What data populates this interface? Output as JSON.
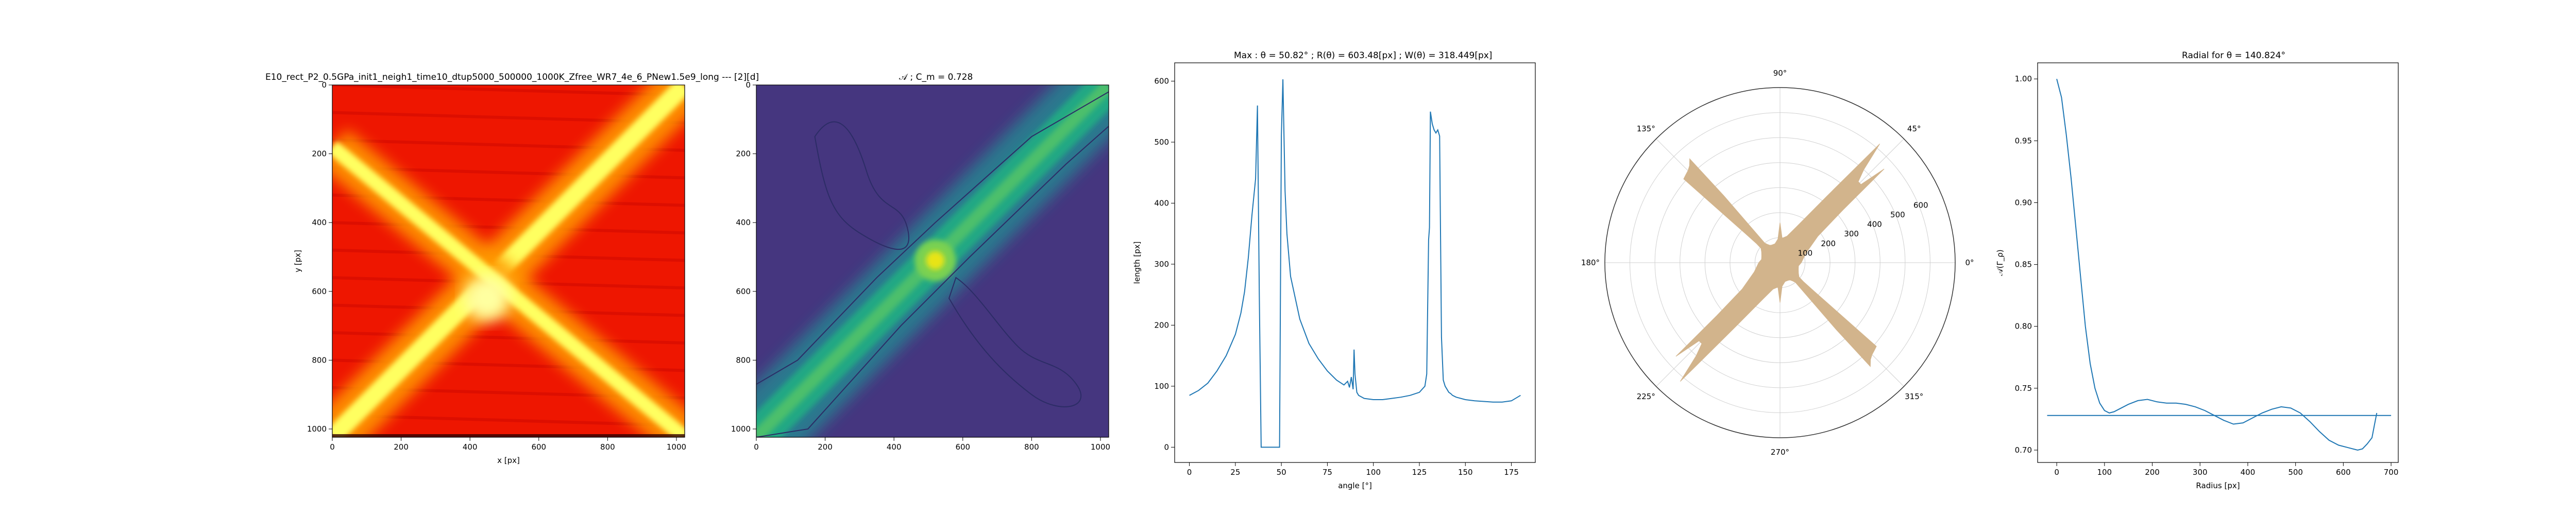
{
  "chart_data": [
    {
      "type": "heatmap",
      "title": "E10_rect_P2_0.5GPa_init1_neigh1_time10_dtup5000_500000_1000K_Zfree_WR7_4e_6_PNew1.5e9_long --- [2][d]",
      "xlabel": "x [px]",
      "ylabel": "y [px]",
      "xlim": [
        0,
        1024
      ],
      "ylim": [
        1024,
        0
      ],
      "xticks": [
        0,
        200,
        400,
        600,
        800,
        1000
      ],
      "yticks": [
        0,
        200,
        400,
        600,
        800,
        1000
      ],
      "colormap": "hot",
      "colors": {
        "low": "#8b0000",
        "mid": "#ff1a00",
        "high": "#ffff60"
      },
      "features": [
        {
          "from": [
            0,
            1024
          ],
          "to": [
            1024,
            0
          ],
          "intensity": 1.0
        },
        {
          "from": [
            0,
            180
          ],
          "to": [
            1024,
            1024
          ],
          "intensity": 0.8
        }
      ]
    },
    {
      "type": "heatmap",
      "title": "$\\mathcal{A}$ ; $C_m = 0.728$",
      "title_display": "𝒜 ; C_m = 0.728",
      "xlabel": "",
      "ylabel": "",
      "xlim": [
        0,
        1024
      ],
      "ylim": [
        1024,
        0
      ],
      "xticks": [
        0,
        200,
        400,
        600,
        800,
        1000
      ],
      "yticks": [
        0,
        200,
        400,
        600,
        800,
        1000
      ],
      "colormap": "viridis",
      "colors": {
        "low": "#433b83",
        "mid": "#21908d",
        "high": "#e8e419"
      },
      "features": [
        {
          "from": [
            0,
            1024
          ],
          "to": [
            1024,
            0
          ],
          "intensity": 1.0
        },
        {
          "peak": [
            520,
            510
          ]
        }
      ],
      "contour_level": 0.728
    },
    {
      "type": "line",
      "title": "Max : θ = 50.82° ; R(θ) = 603.48[px] ; W(θ) = 318.449[px]",
      "xlabel": "angle [°]",
      "ylabel": "length [px]",
      "xlim": [
        -8,
        188
      ],
      "ylim": [
        -25,
        630
      ],
      "xticks": [
        0,
        25,
        50,
        75,
        100,
        125,
        150,
        175
      ],
      "yticks": [
        0,
        100,
        200,
        300,
        400,
        500,
        600
      ],
      "line_color": "#1f77b4",
      "x": [
        0,
        5,
        10,
        15,
        20,
        25,
        28,
        30,
        32,
        34,
        36,
        37,
        38,
        39,
        40,
        44,
        48,
        49,
        50,
        50.82,
        52,
        53,
        55,
        60,
        65,
        70,
        75,
        80,
        84,
        86,
        87,
        88,
        89,
        89.5,
        90,
        91,
        92,
        95,
        100,
        105,
        110,
        115,
        120,
        125,
        128,
        129,
        130,
        130.5,
        131,
        132,
        133,
        134,
        135,
        136,
        137,
        138,
        139,
        140,
        141,
        142,
        143,
        145,
        150,
        155,
        160,
        165,
        170,
        175,
        180
      ],
      "y": [
        85,
        93,
        105,
        125,
        150,
        185,
        220,
        255,
        310,
        380,
        440,
        560,
        250,
        0,
        0,
        0,
        0,
        0,
        510,
        603,
        420,
        350,
        280,
        210,
        170,
        145,
        125,
        110,
        102,
        108,
        98,
        115,
        95,
        160,
        120,
        90,
        85,
        80,
        78,
        78,
        80,
        82,
        85,
        90,
        100,
        120,
        340,
        360,
        550,
        530,
        520,
        515,
        520,
        510,
        180,
        110,
        100,
        95,
        90,
        88,
        85,
        82,
        78,
        76,
        75,
        74,
        74,
        76,
        85
      ]
    },
    {
      "type": "area",
      "subtype": "polar",
      "title": "",
      "theta_ticks": [
        "0°",
        "45°",
        "90°",
        "135°",
        "180°",
        "225°",
        "270°",
        "315°"
      ],
      "r_ticks": [
        100,
        200,
        300,
        400,
        500,
        600
      ],
      "rmax": 700,
      "fill_color": "#d2b48c",
      "theta_deg": [
        0,
        20,
        35,
        40,
        42,
        44,
        46,
        48,
        50,
        55,
        65,
        75,
        85,
        90,
        95,
        105,
        115,
        120,
        125,
        128,
        130,
        131,
        133,
        135,
        137,
        139,
        140,
        141,
        143,
        150,
        160,
        170,
        180
      ],
      "r": [
        85,
        110,
        185,
        330,
        560,
        450,
        450,
        500,
        620,
        320,
        160,
        110,
        98,
        160,
        95,
        78,
        78,
        80,
        90,
        100,
        350,
        550,
        530,
        520,
        515,
        510,
        180,
        120,
        95,
        85,
        78,
        75,
        85
      ]
    },
    {
      "type": "line",
      "title": "Radial for θ = 140.824°",
      "xlabel": "Radius [px]",
      "ylabel": "𝒜(Γ_ρ)",
      "xlim": [
        -40,
        715
      ],
      "ylim": [
        0.69,
        1.013
      ],
      "xticks": [
        0,
        100,
        200,
        300,
        400,
        500,
        600,
        700
      ],
      "yticks": [
        0.7,
        0.75,
        0.8,
        0.85,
        0.9,
        0.95,
        1.0
      ],
      "line_color": "#1f77b4",
      "series": [
        {
          "x": [
            0,
            10,
            20,
            30,
            40,
            50,
            60,
            70,
            80,
            90,
            100,
            110,
            120,
            130,
            150,
            170,
            190,
            210,
            230,
            250,
            270,
            290,
            310,
            330,
            350,
            370,
            390,
            410,
            430,
            450,
            470,
            490,
            510,
            530,
            550,
            570,
            590,
            610,
            630,
            640,
            650,
            660,
            665,
            670
          ],
          "y": [
            1.0,
            0.985,
            0.955,
            0.92,
            0.88,
            0.84,
            0.8,
            0.77,
            0.75,
            0.738,
            0.732,
            0.73,
            0.731,
            0.733,
            0.737,
            0.74,
            0.741,
            0.739,
            0.738,
            0.738,
            0.737,
            0.735,
            0.732,
            0.728,
            0.724,
            0.721,
            0.722,
            0.726,
            0.73,
            0.733,
            0.735,
            0.734,
            0.73,
            0.723,
            0.715,
            0.708,
            0.704,
            0.702,
            0.7,
            0.701,
            0.705,
            0.71,
            0.72,
            0.73
          ]
        },
        {
          "x": [
            -20,
            700
          ],
          "y": [
            0.728,
            0.728
          ]
        }
      ]
    }
  ]
}
